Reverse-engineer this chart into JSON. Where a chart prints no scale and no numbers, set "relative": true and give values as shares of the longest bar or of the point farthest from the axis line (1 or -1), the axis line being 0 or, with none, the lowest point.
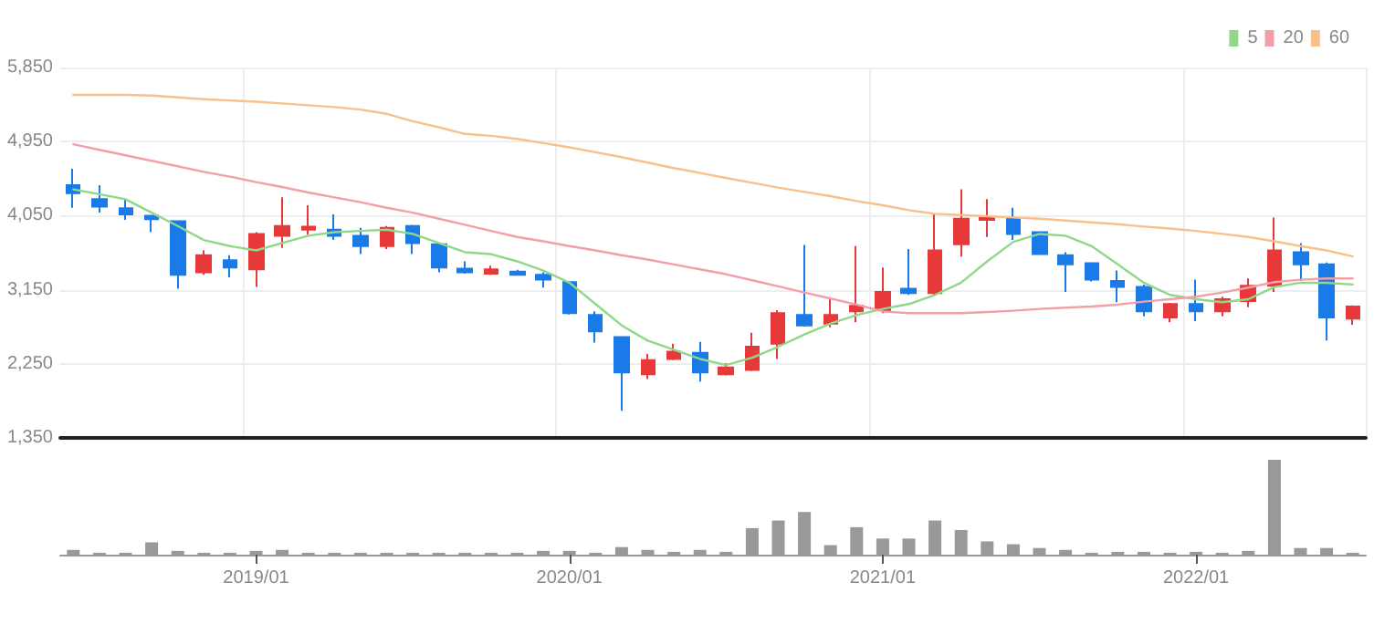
{
  "chart_data": [
    {
      "type": "candlestick",
      "categories": [
        null,
        null,
        null,
        null,
        null,
        null,
        null,
        "2019/01",
        null,
        null,
        null,
        null,
        null,
        null,
        null,
        null,
        null,
        null,
        null,
        "2020/01",
        null,
        null,
        null,
        null,
        null,
        null,
        null,
        null,
        null,
        null,
        null,
        "2021/01",
        null,
        null,
        null,
        null,
        null,
        null,
        null,
        null,
        null,
        null,
        null,
        "2022/01",
        null,
        null,
        null,
        null,
        null,
        null
      ],
      "ohlc": [
        [
          4420,
          4620,
          4146,
          4324
        ],
        [
          4250,
          4420,
          4087,
          4161
        ],
        [
          4139,
          4250,
          3998,
          4065
        ],
        [
          4050,
          4055,
          3850,
          4006
        ],
        [
          3983,
          3990,
          3161,
          3332
        ],
        [
          3361,
          3628,
          3332,
          3569
        ],
        [
          3509,
          3569,
          3302,
          3420
        ],
        [
          3398,
          3850,
          3183,
          3828
        ],
        [
          3806,
          4272,
          3657,
          3924
        ],
        [
          3880,
          4176,
          3820,
          3917
        ],
        [
          3880,
          4065,
          3754,
          3806
        ],
        [
          3806,
          3902,
          3583,
          3680
        ],
        [
          3680,
          3924,
          3643,
          3902
        ],
        [
          3924,
          3939,
          3583,
          3717
        ],
        [
          3702,
          3717,
          3361,
          3420
        ],
        [
          3405,
          3495,
          3346,
          3361
        ],
        [
          3346,
          3443,
          3332,
          3398
        ],
        [
          3369,
          3391,
          3324,
          3332
        ],
        [
          3332,
          3361,
          3176,
          3272
        ],
        [
          3243,
          3257,
          2850,
          2865
        ],
        [
          2843,
          2887,
          2509,
          2643
        ],
        [
          2576,
          2576,
          1680,
          2146
        ],
        [
          2124,
          2369,
          2065,
          2295
        ],
        [
          2309,
          2495,
          2295,
          2398
        ],
        [
          2383,
          2517,
          2035,
          2146
        ],
        [
          2124,
          2258,
          2109,
          2206
        ],
        [
          2176,
          2628,
          2161,
          2458
        ],
        [
          2495,
          2902,
          2309,
          2865
        ],
        [
          2843,
          3695,
          2702,
          2717
        ],
        [
          2739,
          3050,
          2695,
          2843
        ],
        [
          2887,
          3680,
          2754,
          2954
        ],
        [
          2902,
          3420,
          2865,
          3124
        ],
        [
          3161,
          3643,
          3087,
          3109
        ],
        [
          3109,
          4072,
          3087,
          3628
        ],
        [
          3702,
          4369,
          3554,
          4013
        ],
        [
          3998,
          4250,
          3791,
          4028
        ],
        [
          4013,
          4146,
          3754,
          3828
        ],
        [
          3850,
          3850,
          3583,
          3583
        ],
        [
          3569,
          3606,
          3124,
          3458
        ],
        [
          3472,
          3472,
          3250,
          3272
        ],
        [
          3257,
          3383,
          2998,
          3183
        ],
        [
          3183,
          3213,
          2828,
          2887
        ],
        [
          2813,
          2991,
          2754,
          2976
        ],
        [
          2976,
          3272,
          2769,
          2887
        ],
        [
          2887,
          3065,
          2828,
          3035
        ],
        [
          3013,
          3287,
          2939,
          3198
        ],
        [
          3198,
          4028,
          3124,
          3628
        ],
        [
          3606,
          3717,
          3257,
          3458
        ],
        [
          3458,
          3480,
          2532,
          2813
        ],
        [
          2798,
          2961,
          2724,
          2946
        ]
      ],
      "colors": [
        "#1a7be8",
        "#1a7be8",
        "#1a7be8",
        "#1a7be8",
        "#1a7be8",
        "#e8393a",
        "#1a7be8",
        "#e8393a",
        "#e8393a",
        "#e8393a",
        "#1a7be8",
        "#1a7be8",
        "#e8393a",
        "#1a7be8",
        "#1a7be8",
        "#1a7be8",
        "#e8393a",
        "#1a7be8",
        "#1a7be8",
        "#1a7be8",
        "#1a7be8",
        "#1a7be8",
        "#e8393a",
        "#e8393a",
        "#1a7be8",
        "#e8393a",
        "#e8393a",
        "#e8393a",
        "#1a7be8",
        "#e8393a",
        "#e8393a",
        "#e8393a",
        "#1a7be8",
        "#e8393a",
        "#e8393a",
        "#e8393a",
        "#1a7be8",
        "#1a7be8",
        "#1a7be8",
        "#1a7be8",
        "#1a7be8",
        "#1a7be8",
        "#e8393a",
        "#1a7be8",
        "#e8393a",
        "#e8393a",
        "#e8393a",
        "#1a7be8",
        "#1a7be8",
        "#e8393a"
      ],
      "series": [
        {
          "name": "5",
          "type": "line",
          "color": "#8fd88a",
          "values": [
            4369,
            4310,
            4250,
            4087,
            3924,
            3754,
            3680,
            3628,
            3717,
            3806,
            3850,
            3865,
            3880,
            3828,
            3717,
            3606,
            3583,
            3495,
            3383,
            3235,
            2976,
            2717,
            2532,
            2420,
            2309,
            2235,
            2324,
            2458,
            2606,
            2739,
            2843,
            2917,
            2976,
            3087,
            3235,
            3495,
            3732,
            3828,
            3806,
            3680,
            3458,
            3235,
            3087,
            3035,
            2998,
            3035,
            3183,
            3235,
            3235,
            3213
          ]
        },
        {
          "name": "20",
          "type": "line",
          "color": "#f2a0a8",
          "values": [
            4917,
            4850,
            4783,
            4717,
            4650,
            4583,
            4524,
            4457,
            4398,
            4332,
            4272,
            4213,
            4146,
            4087,
            4013,
            3939,
            3865,
            3791,
            3739,
            3680,
            3628,
            3569,
            3517,
            3458,
            3398,
            3339,
            3265,
            3191,
            3117,
            3043,
            2969,
            2887,
            2865,
            2865,
            2865,
            2880,
            2895,
            2917,
            2932,
            2946,
            2969,
            3006,
            3035,
            3065,
            3117,
            3176,
            3243,
            3272,
            3287,
            3287
          ]
        },
        {
          "name": "60",
          "type": "line",
          "color": "#f8c08a",
          "values": [
            5517,
            5517,
            5517,
            5509,
            5487,
            5465,
            5450,
            5435,
            5413,
            5391,
            5369,
            5339,
            5287,
            5198,
            5124,
            5043,
            5020,
            4983,
            4932,
            4880,
            4821,
            4761,
            4695,
            4628,
            4569,
            4509,
            4450,
            4391,
            4339,
            4287,
            4228,
            4176,
            4117,
            4072,
            4057,
            4043,
            4028,
            4013,
            3991,
            3969,
            3946,
            3917,
            3894,
            3865,
            3828,
            3791,
            3739,
            3680,
            3628,
            3554
          ]
        }
      ],
      "ylim": [
        1350,
        5850
      ],
      "yticks": [
        {
          "value": 1350,
          "label": "1,350"
        },
        {
          "value": 2250,
          "label": "2,250"
        },
        {
          "value": 3150,
          "label": "3,150"
        },
        {
          "value": 4050,
          "label": "4,050"
        },
        {
          "value": 4950,
          "label": "4,950"
        },
        {
          "value": 5850,
          "label": "5,850"
        }
      ],
      "grid": true,
      "legend": "top right",
      "marker": "none",
      "line_style": "solid",
      "tick_labels": "y"
    },
    {
      "type": "bar",
      "relative": true,
      "color": "#999999",
      "tick_labels": "x",
      "categories": [
        null,
        null,
        null,
        null,
        null,
        null,
        null,
        "2019/01",
        null,
        null,
        null,
        null,
        null,
        null,
        null,
        null,
        null,
        null,
        null,
        "2020/01",
        null,
        null,
        null,
        null,
        null,
        null,
        null,
        null,
        null,
        null,
        null,
        "2021/01",
        null,
        null,
        null,
        null,
        null,
        null,
        null,
        null,
        null,
        null,
        null,
        "2022/01",
        null,
        null,
        null,
        null,
        null,
        null
      ],
      "values": [
        0.05,
        0.02,
        0.02,
        0.13,
        0.04,
        0.02,
        0.02,
        0.04,
        0.05,
        0.02,
        0.02,
        0.02,
        0.02,
        0.02,
        0.02,
        0.02,
        0.02,
        0.02,
        0.04,
        0.04,
        0.02,
        0.08,
        0.05,
        0.03,
        0.05,
        0.03,
        0.28,
        0.36,
        0.45,
        0.1,
        0.29,
        0.17,
        0.17,
        0.36,
        0.26,
        0.14,
        0.11,
        0.07,
        0.05,
        0.02,
        0.03,
        0.03,
        0.02,
        0.03,
        0.02,
        0.04,
        1,
        0.07,
        0.07,
        0.02
      ]
    }
  ]
}
